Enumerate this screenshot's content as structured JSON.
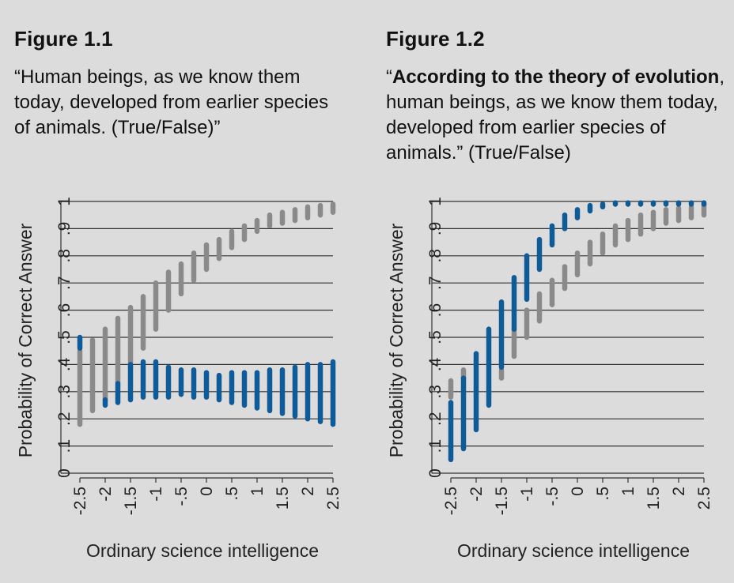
{
  "panels": [
    {
      "title": "Figure 1.1",
      "caption": "“Human beings, as we know them today, developed from earlier species of animals. (True/False)”"
    },
    {
      "title": "Figure 1.2",
      "caption_parts": [
        "“",
        "According to the theory of evolution",
        ", human beings, as we know them today, developed from earlier species of animals.” (True/False)"
      ]
    }
  ],
  "colors": {
    "blue": "#0f5a99",
    "gray": "#8a8a8a",
    "grid": "#333333",
    "background": "#dcdcdc"
  },
  "chart_data": [
    {
      "type": "range",
      "xlabel": "Ordinary science intelligence",
      "ylabel": "Probability of Correct Answer",
      "xlim": [
        -2.5,
        2.5
      ],
      "ylim": [
        0,
        1
      ],
      "x_ticks": [
        "-2.5",
        "-2",
        "-1.5",
        "-1",
        "-.5",
        "0",
        ".5",
        "1",
        "1.5",
        "2",
        "2.5"
      ],
      "y_ticks": [
        "0",
        ".1",
        ".2",
        ".3",
        ".4",
        ".5",
        ".6",
        ".7",
        ".8",
        ".9",
        "1"
      ],
      "grid": true,
      "x": [
        -2.5,
        -2.25,
        -2,
        -1.75,
        -1.5,
        -1.25,
        -1,
        -0.75,
        -0.5,
        -0.25,
        0,
        0.25,
        0.5,
        0.75,
        1,
        1.25,
        1.5,
        1.75,
        2,
        2.25,
        2.5
      ],
      "series": [
        {
          "color": "gray",
          "ranges": [
            [
              0.18,
              0.45
            ],
            [
              0.23,
              0.49
            ],
            [
              0.27,
              0.53
            ],
            [
              0.33,
              0.57
            ],
            [
              0.39,
              0.61
            ],
            [
              0.46,
              0.65
            ],
            [
              0.53,
              0.7
            ],
            [
              0.6,
              0.74
            ],
            [
              0.66,
              0.77
            ],
            [
              0.71,
              0.81
            ],
            [
              0.75,
              0.84
            ],
            [
              0.79,
              0.86
            ],
            [
              0.83,
              0.89
            ],
            [
              0.86,
              0.91
            ],
            [
              0.89,
              0.93
            ],
            [
              0.91,
              0.95
            ],
            [
              0.92,
              0.96
            ],
            [
              0.93,
              0.97
            ],
            [
              0.94,
              0.98
            ],
            [
              0.95,
              0.985
            ],
            [
              0.96,
              0.99
            ]
          ]
        },
        {
          "color": "blue",
          "ranges": [
            [
              0.46,
              0.5
            ],
            [
              null,
              null
            ],
            [
              0.25,
              0.27
            ],
            [
              0.26,
              0.33
            ],
            [
              0.27,
              0.4
            ],
            [
              0.28,
              0.41
            ],
            [
              0.28,
              0.41
            ],
            [
              0.28,
              0.39
            ],
            [
              0.29,
              0.38
            ],
            [
              0.28,
              0.38
            ],
            [
              0.28,
              0.37
            ],
            [
              0.27,
              0.36
            ],
            [
              0.26,
              0.37
            ],
            [
              0.25,
              0.37
            ],
            [
              0.24,
              0.37
            ],
            [
              0.23,
              0.38
            ],
            [
              0.22,
              0.38
            ],
            [
              0.21,
              0.39
            ],
            [
              0.2,
              0.4
            ],
            [
              0.19,
              0.4
            ],
            [
              0.18,
              0.41
            ]
          ]
        }
      ]
    },
    {
      "type": "range",
      "xlabel": "Ordinary science intelligence",
      "ylabel": "Probability of Correct Answer",
      "xlim": [
        -2.5,
        2.5
      ],
      "ylim": [
        0,
        1
      ],
      "x_ticks": [
        "-2.5",
        "-2",
        "-1.5",
        "-1",
        "-.5",
        "0",
        ".5",
        "1",
        "1.5",
        "2",
        "2.5"
      ],
      "y_ticks": [
        "0",
        ".1",
        ".2",
        ".3",
        ".4",
        ".5",
        ".6",
        ".7",
        ".8",
        ".9",
        "1"
      ],
      "grid": true,
      "x": [
        -2.5,
        -2.25,
        -2,
        -1.75,
        -1.5,
        -1.25,
        -1,
        -0.75,
        -0.5,
        -0.25,
        0,
        0.25,
        0.5,
        0.75,
        1,
        1.25,
        1.5,
        1.75,
        2,
        2.25,
        2.5
      ],
      "series": [
        {
          "color": "gray",
          "ranges": [
            [
              0.28,
              0.34
            ],
            [
              0.35,
              0.38
            ],
            [
              null,
              null
            ],
            [
              null,
              null
            ],
            [
              0.35,
              0.38
            ],
            [
              0.43,
              0.53
            ],
            [
              0.5,
              0.6
            ],
            [
              0.56,
              0.66
            ],
            [
              0.62,
              0.71
            ],
            [
              0.68,
              0.76
            ],
            [
              0.73,
              0.81
            ],
            [
              0.77,
              0.85
            ],
            [
              0.81,
              0.88
            ],
            [
              0.84,
              0.91
            ],
            [
              0.86,
              0.93
            ],
            [
              0.88,
              0.95
            ],
            [
              0.9,
              0.96
            ],
            [
              0.92,
              0.97
            ],
            [
              0.93,
              0.975
            ],
            [
              0.94,
              0.98
            ],
            [
              0.95,
              0.99
            ]
          ]
        },
        {
          "color": "blue",
          "ranges": [
            [
              0.05,
              0.26
            ],
            [
              0.09,
              0.35
            ],
            [
              0.16,
              0.44
            ],
            [
              0.25,
              0.53
            ],
            [
              0.39,
              0.63
            ],
            [
              0.53,
              0.72
            ],
            [
              0.64,
              0.8
            ],
            [
              0.75,
              0.86
            ],
            [
              0.84,
              0.91
            ],
            [
              0.9,
              0.95
            ],
            [
              0.94,
              0.97
            ],
            [
              0.965,
              0.985
            ],
            [
              0.98,
              0.99
            ],
            [
              0.99,
              0.995
            ],
            [
              0.99,
              0.995
            ],
            [
              0.99,
              0.995
            ],
            [
              0.99,
              0.995
            ],
            [
              0.99,
              0.995
            ],
            [
              0.99,
              0.995
            ],
            [
              0.99,
              0.995
            ],
            [
              0.99,
              0.995
            ]
          ]
        }
      ]
    }
  ]
}
